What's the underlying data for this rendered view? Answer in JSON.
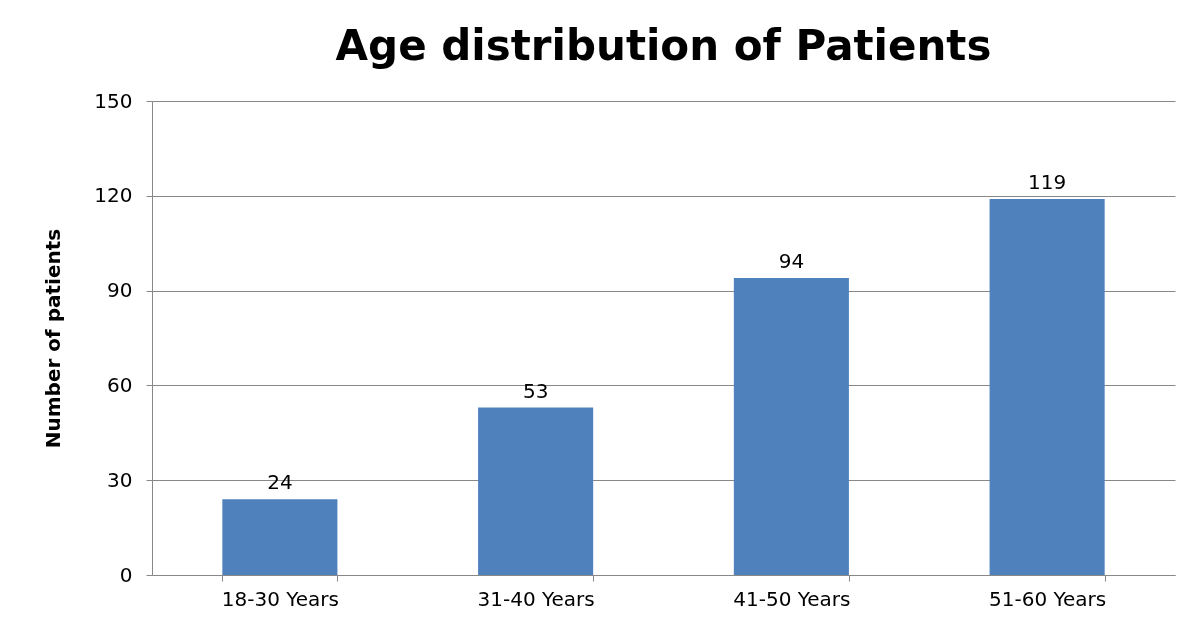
{
  "chart_data": {
    "type": "bar",
    "title": "Age distribution of Patients",
    "ylabel": "Number of patients",
    "categories": [
      "18-30 Years",
      "31-40 Years",
      "41-50 Years",
      "51-60 Years"
    ],
    "values": [
      24,
      53,
      94,
      119
    ],
    "color": "#4f81bd",
    "ylim": [
      0,
      150
    ],
    "yticks": [
      0,
      30,
      60,
      90,
      120,
      150
    ],
    "grid": "y",
    "data_labels": true
  }
}
